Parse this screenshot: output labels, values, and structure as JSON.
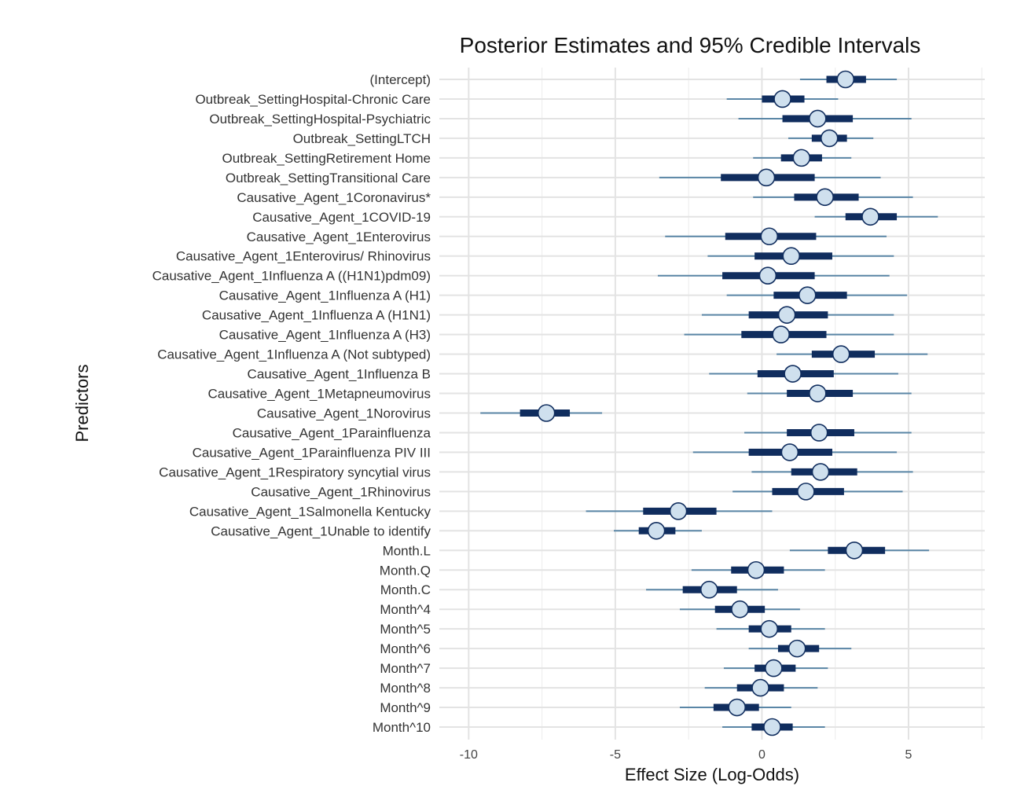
{
  "chart_data": {
    "type": "interval",
    "title": "Posterior Estimates and 95% Credible Intervals",
    "xlabel": "Effect Size (Log-Odds)",
    "ylabel": "Predictors",
    "xlim": [
      -11,
      7.6
    ],
    "xticks": [
      -10,
      -5,
      0,
      5
    ],
    "grid": true,
    "colors": {
      "outer_interval": "#5a86a6",
      "inner_interval": "#102d5e",
      "point_fill": "#cfe0ee",
      "point_stroke": "#102d5e"
    },
    "predictors": [
      {
        "label": "(Intercept)",
        "estimate": 2.85,
        "inner": [
          2.2,
          3.55
        ],
        "outer": [
          1.3,
          4.6
        ]
      },
      {
        "label": "Outbreak_SettingHospital-Chronic Care",
        "estimate": 0.7,
        "inner": [
          0.0,
          1.45
        ],
        "outer": [
          -1.2,
          2.6
        ]
      },
      {
        "label": "Outbreak_SettingHospital-Psychiatric",
        "estimate": 1.9,
        "inner": [
          0.7,
          3.1
        ],
        "outer": [
          -0.8,
          5.1
        ]
      },
      {
        "label": "Outbreak_SettingLTCH",
        "estimate": 2.3,
        "inner": [
          1.7,
          2.9
        ],
        "outer": [
          0.9,
          3.8
        ]
      },
      {
        "label": "Outbreak_SettingRetirement Home",
        "estimate": 1.35,
        "inner": [
          0.65,
          2.05
        ],
        "outer": [
          -0.3,
          3.05
        ]
      },
      {
        "label": "Outbreak_SettingTransitional Care",
        "estimate": 0.15,
        "inner": [
          -1.4,
          1.8
        ],
        "outer": [
          -3.5,
          4.05
        ]
      },
      {
        "label": "Causative_Agent_1Coronavirus*",
        "estimate": 2.15,
        "inner": [
          1.1,
          3.3
        ],
        "outer": [
          -0.3,
          5.15
        ]
      },
      {
        "label": "Causative_Agent_1COVID-19",
        "estimate": 3.7,
        "inner": [
          2.85,
          4.6
        ],
        "outer": [
          1.8,
          6.0
        ]
      },
      {
        "label": "Causative_Agent_1Enterovirus",
        "estimate": 0.25,
        "inner": [
          -1.25,
          1.85
        ],
        "outer": [
          -3.3,
          4.25
        ]
      },
      {
        "label": "Causative_Agent_1Enterovirus/ Rhinovirus",
        "estimate": 1.0,
        "inner": [
          -0.25,
          2.4
        ],
        "outer": [
          -1.85,
          4.5
        ]
      },
      {
        "label": "Causative_Agent_1Influenza A ((H1N1)pdm09)",
        "estimate": 0.2,
        "inner": [
          -1.35,
          1.8
        ],
        "outer": [
          -3.55,
          4.35
        ]
      },
      {
        "label": "Causative_Agent_1Influenza A (H1)",
        "estimate": 1.55,
        "inner": [
          0.4,
          2.9
        ],
        "outer": [
          -1.2,
          4.95
        ]
      },
      {
        "label": "Causative_Agent_1Influenza A (H1N1)",
        "estimate": 0.85,
        "inner": [
          -0.45,
          2.25
        ],
        "outer": [
          -2.05,
          4.5
        ]
      },
      {
        "label": "Causative_Agent_1Influenza A (H3)",
        "estimate": 0.65,
        "inner": [
          -0.7,
          2.2
        ],
        "outer": [
          -2.65,
          4.5
        ]
      },
      {
        "label": "Causative_Agent_1Influenza A (Not subtyped)",
        "estimate": 2.7,
        "inner": [
          1.7,
          3.85
        ],
        "outer": [
          0.5,
          5.65
        ]
      },
      {
        "label": "Causative_Agent_1Influenza B",
        "estimate": 1.05,
        "inner": [
          -0.15,
          2.45
        ],
        "outer": [
          -1.8,
          4.65
        ]
      },
      {
        "label": "Causative_Agent_1Metapneumovirus",
        "estimate": 1.9,
        "inner": [
          0.85,
          3.1
        ],
        "outer": [
          -0.5,
          5.1
        ]
      },
      {
        "label": "Causative_Agent_1Norovirus",
        "estimate": -7.35,
        "inner": [
          -8.25,
          -6.55
        ],
        "outer": [
          -9.6,
          -5.45
        ]
      },
      {
        "label": "Causative_Agent_1Parainfluenza",
        "estimate": 1.95,
        "inner": [
          0.85,
          3.15
        ],
        "outer": [
          -0.6,
          5.1
        ]
      },
      {
        "label": "Causative_Agent_1Parainfluenza PIV III",
        "estimate": 0.95,
        "inner": [
          -0.45,
          2.4
        ],
        "outer": [
          -2.35,
          4.6
        ]
      },
      {
        "label": "Causative_Agent_1Respiratory syncytial virus",
        "estimate": 2.0,
        "inner": [
          1.0,
          3.25
        ],
        "outer": [
          -0.35,
          5.15
        ]
      },
      {
        "label": "Causative_Agent_1Rhinovirus",
        "estimate": 1.5,
        "inner": [
          0.35,
          2.8
        ],
        "outer": [
          -1.0,
          4.8
        ]
      },
      {
        "label": "Causative_Agent_1Salmonella Kentucky",
        "estimate": -2.85,
        "inner": [
          -4.05,
          -1.55
        ],
        "outer": [
          -6.0,
          0.35
        ]
      },
      {
        "label": "Causative_Agent_1Unable to identify",
        "estimate": -3.6,
        "inner": [
          -4.2,
          -2.95
        ],
        "outer": [
          -5.05,
          -2.05
        ]
      },
      {
        "label": "Month.L",
        "estimate": 3.15,
        "inner": [
          2.25,
          4.2
        ],
        "outer": [
          0.95,
          5.7
        ]
      },
      {
        "label": "Month.Q",
        "estimate": -0.2,
        "inner": [
          -1.05,
          0.75
        ],
        "outer": [
          -2.4,
          2.15
        ]
      },
      {
        "label": "Month.C",
        "estimate": -1.8,
        "inner": [
          -2.7,
          -0.85
        ],
        "outer": [
          -3.95,
          0.55
        ]
      },
      {
        "label": "Month^4",
        "estimate": -0.75,
        "inner": [
          -1.6,
          0.1
        ],
        "outer": [
          -2.8,
          1.3
        ]
      },
      {
        "label": "Month^5",
        "estimate": 0.25,
        "inner": [
          -0.45,
          1.0
        ],
        "outer": [
          -1.55,
          2.15
        ]
      },
      {
        "label": "Month^6",
        "estimate": 1.2,
        "inner": [
          0.55,
          1.95
        ],
        "outer": [
          -0.45,
          3.05
        ]
      },
      {
        "label": "Month^7",
        "estimate": 0.4,
        "inner": [
          -0.25,
          1.15
        ],
        "outer": [
          -1.3,
          2.25
        ]
      },
      {
        "label": "Month^8",
        "estimate": -0.05,
        "inner": [
          -0.85,
          0.75
        ],
        "outer": [
          -1.95,
          1.9
        ]
      },
      {
        "label": "Month^9",
        "estimate": -0.85,
        "inner": [
          -1.65,
          -0.1
        ],
        "outer": [
          -2.8,
          1.0
        ]
      },
      {
        "label": "Month^10",
        "estimate": 0.35,
        "inner": [
          -0.35,
          1.05
        ],
        "outer": [
          -1.35,
          2.15
        ]
      }
    ]
  }
}
